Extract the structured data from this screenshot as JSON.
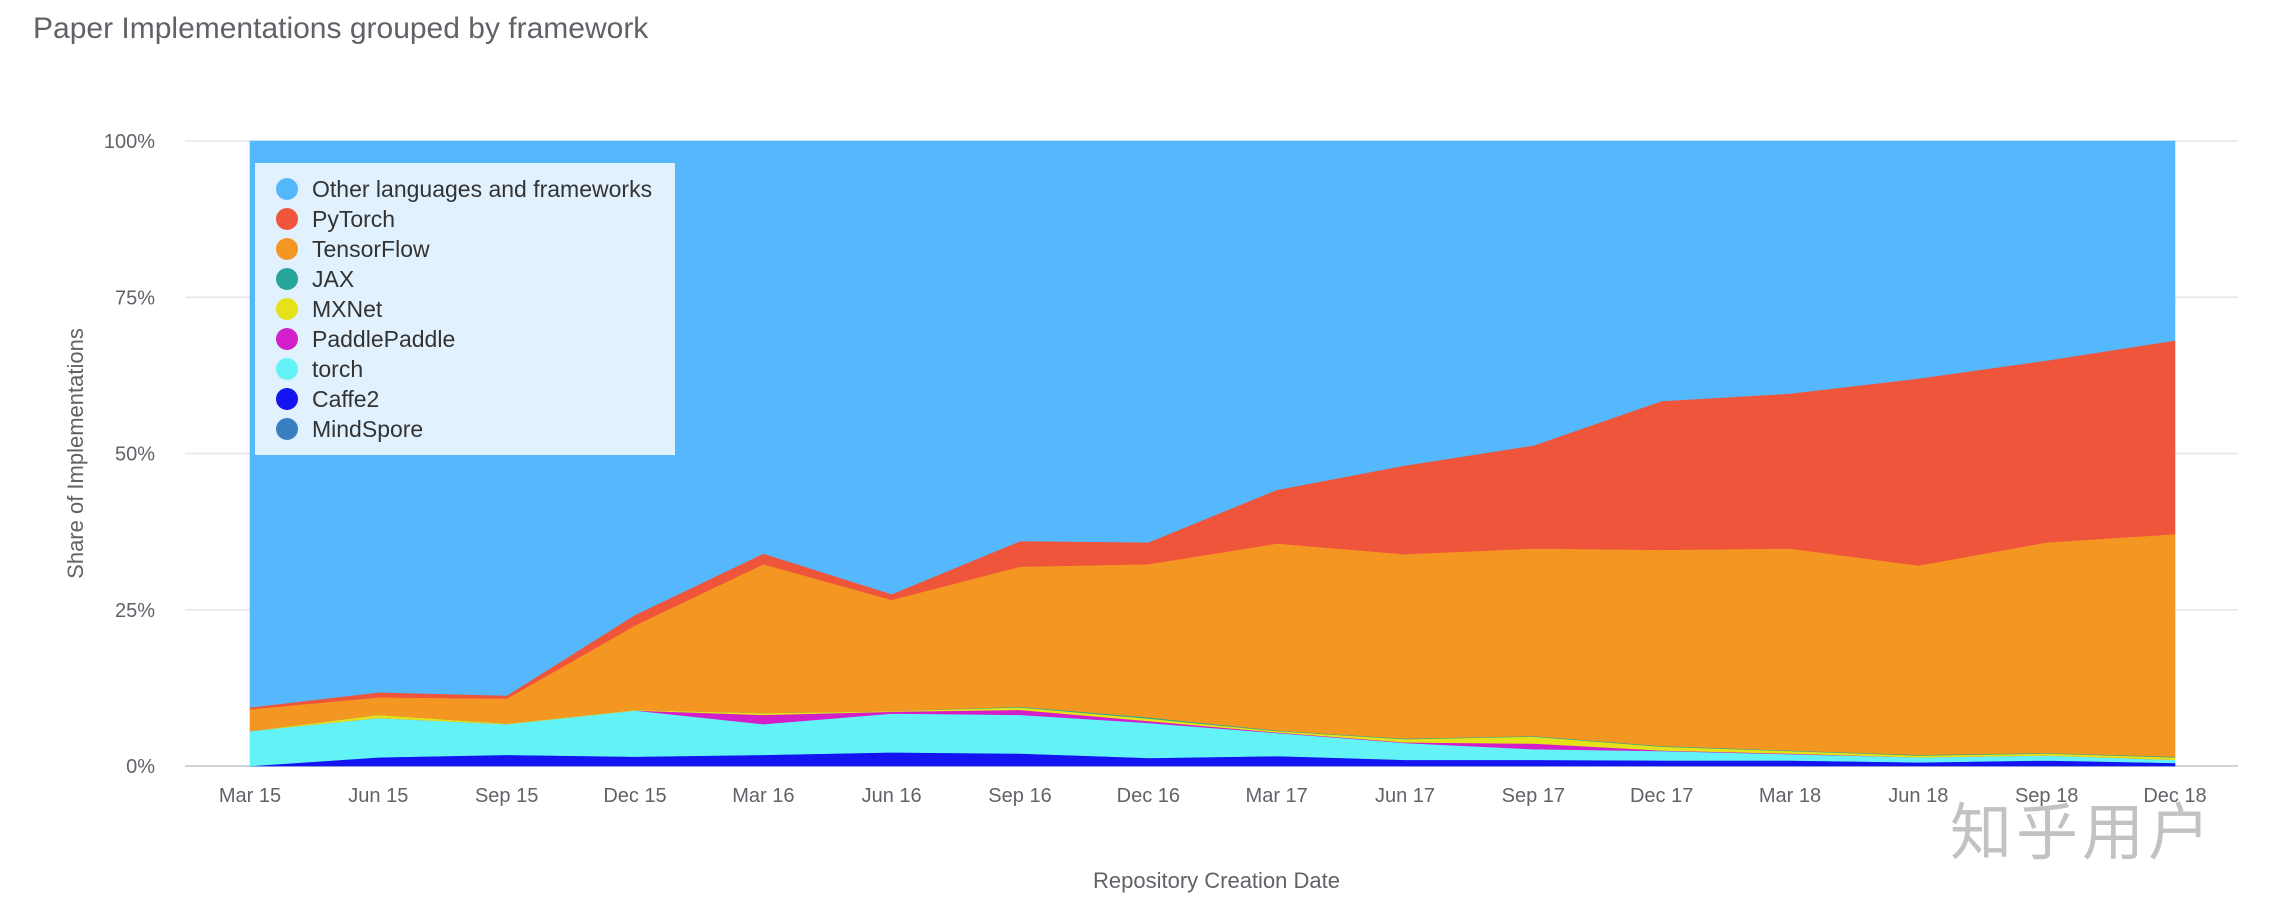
{
  "title": "Paper Implementations grouped by framework",
  "watermark": "知乎用户",
  "chart_data": {
    "type": "area",
    "stacked": true,
    "normalized": true,
    "title": "Paper Implementations grouped by framework",
    "xlabel": "Repository Creation Date",
    "ylabel": "Share of Implementations",
    "ylim": [
      0,
      100
    ],
    "y_ticks": [
      "0%",
      "25%",
      "50%",
      "75%",
      "100%"
    ],
    "y_tick_values": [
      0,
      25,
      50,
      75,
      100
    ],
    "categories": [
      "Mar 15",
      "Jun 15",
      "Sep 15",
      "Dec 15",
      "Mar 16",
      "Jun 16",
      "Sep 16",
      "Dec 16",
      "Mar 17",
      "Jun 17",
      "Sep 17",
      "Dec 17",
      "Mar 18",
      "Jun 18",
      "Sep 18",
      "Dec 18"
    ],
    "legend_position": "top-left",
    "grid": true,
    "series": [
      {
        "name": "MindSpore",
        "color": "#3a7fc1",
        "values": [
          0,
          0,
          0,
          0,
          0,
          0,
          0,
          0,
          0,
          0,
          0,
          0,
          0,
          0,
          0,
          0
        ]
      },
      {
        "name": "Caffe2",
        "color": "#1414f0",
        "values": [
          0,
          1.4,
          1.8,
          1.5,
          1.8,
          2.2,
          2.0,
          1.3,
          1.6,
          1.0,
          1.0,
          0.9,
          0.9,
          0.6,
          0.9,
          0.5
        ]
      },
      {
        "name": "torch",
        "color": "#63f3f7",
        "values": [
          5.6,
          6.3,
          4.9,
          7.4,
          4.9,
          6.2,
          6.2,
          5.6,
          3.7,
          2.7,
          1.7,
          1.5,
          1.0,
          0.8,
          0.8,
          0.5
        ]
      },
      {
        "name": "PaddlePaddle",
        "color": "#d21fc9",
        "values": [
          0,
          0,
          0,
          0,
          1.5,
          0.3,
          0.8,
          0.3,
          0.1,
          0.1,
          0.9,
          0.1,
          0.1,
          0,
          0,
          0
        ]
      },
      {
        "name": "MXNet",
        "color": "#e6e21a",
        "values": [
          0,
          0.5,
          0.1,
          0.1,
          0.3,
          0.1,
          0.4,
          0.4,
          0.2,
          0.5,
          1.1,
          0.6,
          0.4,
          0.3,
          0.3,
          0.4
        ]
      },
      {
        "name": "JAX",
        "color": "#26a69a",
        "values": [
          0,
          0,
          0,
          0,
          0,
          0,
          0.1,
          0.2,
          0.1,
          0.1,
          0.1,
          0.1,
          0.1,
          0.1,
          0.1,
          0.1
        ]
      },
      {
        "name": "TensorFlow",
        "color": "#f49622",
        "values": [
          3.5,
          2.8,
          4.0,
          13.5,
          23.8,
          17.8,
          22.4,
          24.5,
          29.9,
          29.5,
          30.0,
          31.4,
          32.3,
          30.3,
          33.7,
          35.6
        ]
      },
      {
        "name": "PyTorch",
        "color": "#ef553b",
        "values": [
          0.3,
          0.8,
          0.5,
          1.7,
          1.7,
          0.9,
          4.1,
          3.5,
          8.6,
          14.2,
          16.5,
          23.8,
          24.8,
          29.9,
          29.1,
          31.0
        ]
      },
      {
        "name": "Other languages and frameworks",
        "color": "#56b8fc",
        "values": [
          90.6,
          88.2,
          88.7,
          75.8,
          66.0,
          72.5,
          64.0,
          64.2,
          55.8,
          51.9,
          48.7,
          41.6,
          40.4,
          38.0,
          35.1,
          31.9
        ]
      }
    ],
    "legend_order": [
      "Other languages and frameworks",
      "PyTorch",
      "TensorFlow",
      "JAX",
      "MXNet",
      "PaddlePaddle",
      "torch",
      "Caffe2",
      "MindSpore"
    ]
  }
}
